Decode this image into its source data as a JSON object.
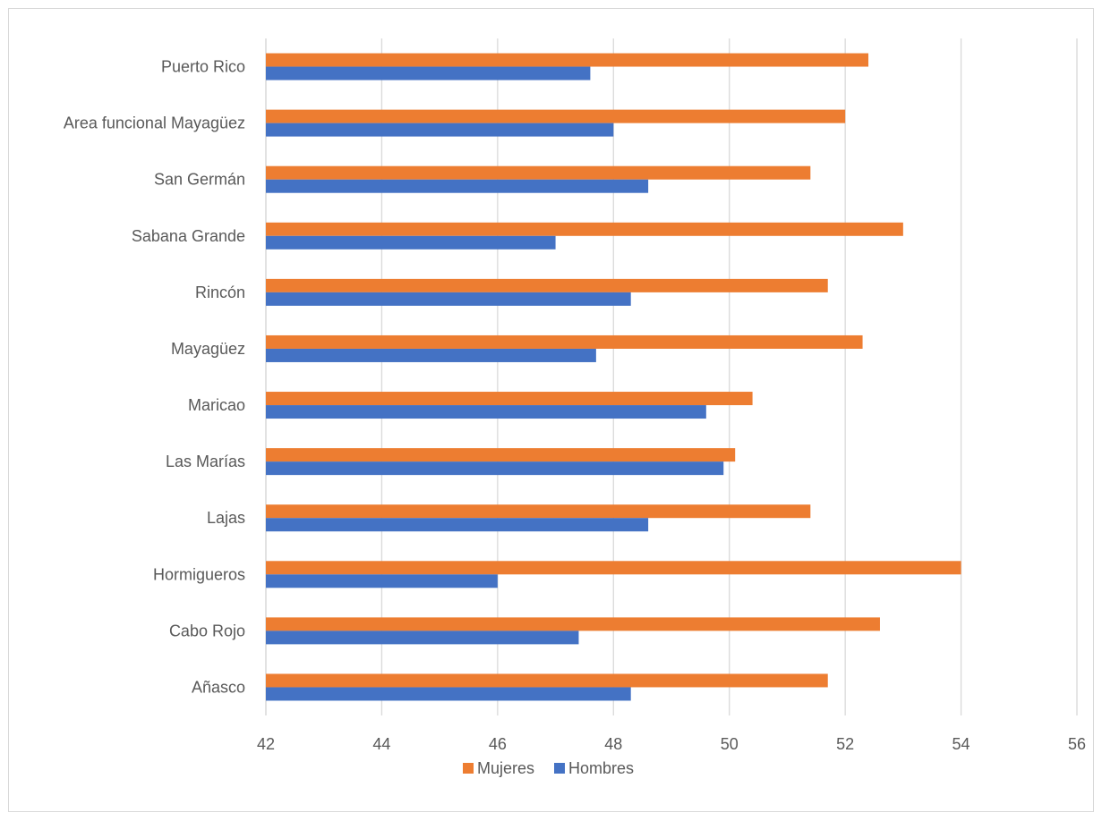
{
  "chart_data": {
    "type": "bar",
    "orientation": "horizontal",
    "categories": [
      "Puerto Rico",
      "Area funcional Mayagüez",
      "San Germán",
      "Sabana Grande",
      "Rincón",
      "Mayagüez",
      "Maricao",
      "Las Marías",
      "Lajas",
      "Hormigueros",
      "Cabo Rojo",
      "Añasco"
    ],
    "series": [
      {
        "name": "Mujeres",
        "color": "#ED7D31",
        "values": [
          52.4,
          52.0,
          51.4,
          53.0,
          51.7,
          52.3,
          50.4,
          50.1,
          51.4,
          54.0,
          52.6,
          51.7
        ]
      },
      {
        "name": "Hombres",
        "color": "#4472C4",
        "values": [
          47.6,
          48.0,
          48.6,
          47.0,
          48.3,
          47.7,
          49.6,
          49.9,
          48.6,
          46.0,
          47.4,
          48.3
        ]
      }
    ],
    "xlim": [
      42,
      56
    ],
    "xticks": [
      "42",
      "44",
      "46",
      "48",
      "50",
      "52",
      "54",
      "56"
    ],
    "grid": true,
    "legend": "bottom"
  }
}
